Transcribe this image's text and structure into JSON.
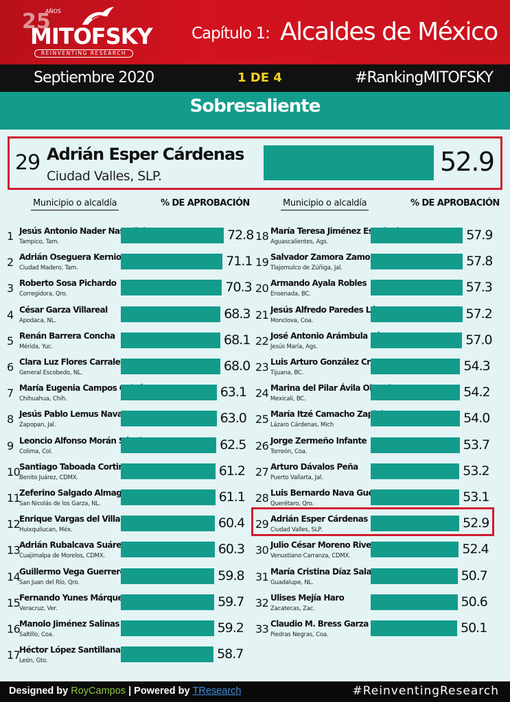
{
  "header": {
    "logo": {
      "anniversary": "25",
      "anios": "AÑOS",
      "brand": "MITOFSKY",
      "tagline": "REINVENTING RESEARCH"
    },
    "chapter": "Capítulo 1:",
    "title": "Alcaldes de México",
    "date": "Septiembre 2020",
    "page": "1 DE 4",
    "hashtag": "#RankingMITOFSKY",
    "category": "Sobresaliente"
  },
  "featured": {
    "rank": "29",
    "name": "Adrián Esper Cárdenas",
    "city": "Ciudad Valles, SLP.",
    "value": "52.9"
  },
  "column_headers": {
    "municipio": "Municipio o alcaldía",
    "aprobacion": "% DE APROBACIÓN"
  },
  "colors": {
    "red": "#d3131f",
    "teal": "#139c8c",
    "highlight_border": "#d11d2d",
    "yellow": "#f3d21b",
    "background": "#e4f4f5"
  },
  "chart_data": {
    "type": "bar",
    "orientation": "horizontal",
    "xlabel": "% DE APROBACIÓN",
    "highlighted_rank": "29",
    "rows": [
      {
        "rank": "1",
        "name": "Jesús Antonio Nader Nasrallah",
        "city": "Tampico, Tam.",
        "value": 72.8,
        "label": "72.8"
      },
      {
        "rank": "2",
        "name": "Adrián Oseguera Kernion",
        "city": "Ciudad Madero, Tam.",
        "value": 71.1,
        "label": "71.1"
      },
      {
        "rank": "3",
        "name": "Roberto Sosa Pichardo",
        "city": "Corregidora, Qro.",
        "value": 70.3,
        "label": "70.3"
      },
      {
        "rank": "4",
        "name": "César Garza Villareal",
        "city": "Apodaca, NL.",
        "value": 68.3,
        "label": "68.3"
      },
      {
        "rank": "5",
        "name": "Renán Barrera Concha",
        "city": "Mérida, Yuc.",
        "value": 68.1,
        "label": "68.1"
      },
      {
        "rank": "6",
        "name": "Clara Luz Flores Carrales",
        "city": "General Escobedo, NL.",
        "value": 68.0,
        "label": "68.0"
      },
      {
        "rank": "7",
        "name": "María Eugenia Campos Galván",
        "city": "Chihuahua, Chih.",
        "value": 63.1,
        "label": "63.1"
      },
      {
        "rank": "8",
        "name": "Jesús Pablo Lemus Nava",
        "city": "Zapopan, Jal.",
        "value": 63.0,
        "label": "63.0"
      },
      {
        "rank": "9",
        "name": "Leoncio Alfonso Morán Sánchez",
        "city": "Colima, Col.",
        "value": 62.5,
        "label": "62.5"
      },
      {
        "rank": "10",
        "name": "Santiago Taboada Cortina",
        "city": "Benito Juárez, CDMX.",
        "value": 61.2,
        "label": "61.2"
      },
      {
        "rank": "11",
        "name": "Zeferino Salgado Almaguer",
        "city": "San Nicolás de los Garza, NL.",
        "value": 61.1,
        "label": "61.1"
      },
      {
        "rank": "12",
        "name": "Enrique Vargas del Villar",
        "city": "Huixquilucan, Méx.",
        "value": 60.4,
        "label": "60.4"
      },
      {
        "rank": "13",
        "name": "Adrián Rubalcava Suárez",
        "city": "Cuajimalpa de Morelos, CDMX.",
        "value": 60.3,
        "label": "60.3"
      },
      {
        "rank": "14",
        "name": "Guillermo Vega Guerrero",
        "city": "San Juan del Río, Qro.",
        "value": 59.8,
        "label": "59.8"
      },
      {
        "rank": "15",
        "name": "Fernando Yunes Márquez",
        "city": "Veracruz, Ver.",
        "value": 59.7,
        "label": "59.7"
      },
      {
        "rank": "16",
        "name": "Manolo Jiménez Salinas",
        "city": "Saltillo, Coa.",
        "value": 59.2,
        "label": "59.2"
      },
      {
        "rank": "17",
        "name": "Héctor López Santillana",
        "city": "León, Gto.",
        "value": 58.7,
        "label": "58.7"
      },
      {
        "rank": "18",
        "name": "María Teresa Jiménez Esquivel",
        "city": "Aguascalientes, Ags.",
        "value": 57.9,
        "label": "57.9"
      },
      {
        "rank": "19",
        "name": "Salvador Zamora Zamora",
        "city": "Tlajomulco de Zúñiga, Jal.",
        "value": 57.8,
        "label": "57.8"
      },
      {
        "rank": "20",
        "name": "Armando Ayala Robles",
        "city": "Ensenada, BC.",
        "value": 57.3,
        "label": "57.3"
      },
      {
        "rank": "21",
        "name": "Jesús Alfredo Paredes López",
        "city": "Monclova, Coa.",
        "value": 57.2,
        "label": "57.2"
      },
      {
        "rank": "22",
        "name": "José Antonio Arámbula López",
        "city": "Jesús María, Ags.",
        "value": 57.0,
        "label": "57.0"
      },
      {
        "rank": "23",
        "name": "Luis Arturo González Cruz",
        "city": "Tijuana, BC.",
        "value": 54.3,
        "label": "54.3"
      },
      {
        "rank": "24",
        "name": "Marina del Pilar Ávila Olmeda",
        "city": "Mexicali, BC.",
        "value": 54.2,
        "label": "54.2"
      },
      {
        "rank": "25",
        "name": "María Itzé Camacho Zapiain",
        "city": "Lázaro Cárdenas, Mich",
        "value": 54.0,
        "label": "54.0"
      },
      {
        "rank": "26",
        "name": "Jorge Zermeño Infante",
        "city": "Torreón, Coa.",
        "value": 53.7,
        "label": "53.7"
      },
      {
        "rank": "27",
        "name": "Arturo Dávalos Peña",
        "city": "Puerto Vallarta, Jal.",
        "value": 53.2,
        "label": "53.2"
      },
      {
        "rank": "28",
        "name": "Luis Bernardo Nava Guerrero",
        "city": "Querétaro, Qro.",
        "value": 53.1,
        "label": "53.1"
      },
      {
        "rank": "29",
        "name": "Adrián Esper Cárdenas",
        "city": "Ciudad Valles, SLP.",
        "value": 52.9,
        "label": "52.9"
      },
      {
        "rank": "30",
        "name": "Julio César Moreno Rivera",
        "city": "Venustiano Carranza, CDMX.",
        "value": 52.4,
        "label": "52.4"
      },
      {
        "rank": "31",
        "name": "María Cristina Díaz Salazar",
        "city": "Guadalupe, NL.",
        "value": 50.7,
        "label": "50.7"
      },
      {
        "rank": "32",
        "name": "Ulises Mejía Haro",
        "city": "Zacatecas, Zac.",
        "value": 50.6,
        "label": "50.6"
      },
      {
        "rank": "33",
        "name": "Claudio M. Bress Garza",
        "city": "Piedras Negras, Coa.",
        "value": 50.1,
        "label": "50.1"
      }
    ]
  },
  "footer": {
    "designed_by": "Designed by",
    "designer": "RoyCampos",
    "separator": "|",
    "powered_by": "Powered by",
    "powered": "TResearch",
    "hashtag": "#ReinventingResearch"
  }
}
